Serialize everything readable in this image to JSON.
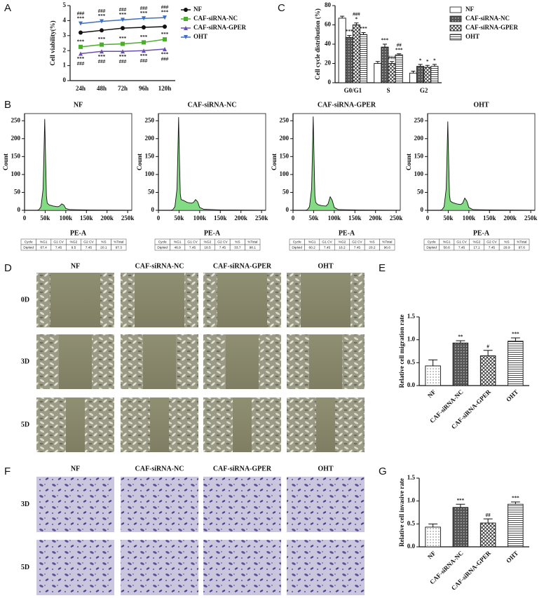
{
  "panel_labels": [
    "A",
    "B",
    "C",
    "D",
    "E",
    "F",
    "G"
  ],
  "micrographs": {
    "D": {
      "columns": [
        "NF",
        "CAF-siRNA-NC",
        "CAF-siRNA-GPER",
        "OHT"
      ],
      "rows": [
        "0D",
        "3D",
        "5D"
      ]
    },
    "F": {
      "columns": [
        "NF",
        "CAF-siRNA-NC",
        "CAF-siRNA-GPER",
        "OHT"
      ],
      "rows": [
        "3D",
        "5D"
      ]
    }
  },
  "chart_data": [
    {
      "type": "line",
      "y_label": "Cell viability(%)",
      "categories": [
        "24h",
        "48h",
        "72h",
        "96h",
        "120h"
      ],
      "ylim": [
        0,
        5
      ],
      "yticks": [
        0,
        1,
        2,
        3,
        4,
        5
      ],
      "series": [
        {
          "name": "NF",
          "color": "#111111",
          "marker": "circle",
          "values": [
            3.2,
            3.35,
            3.5,
            3.55,
            3.6
          ],
          "significance_position": "above",
          "significance": [
            [],
            [],
            [],
            [],
            []
          ]
        },
        {
          "name": "CAF-siRNA-NC",
          "color": "#4caf2c",
          "marker": "square",
          "values": [
            2.25,
            2.4,
            2.45,
            2.55,
            2.75
          ],
          "significance_position": "above",
          "significance": [
            [
              "***"
            ],
            [
              "***"
            ],
            [
              "***"
            ],
            [
              "***"
            ],
            [
              "***"
            ]
          ]
        },
        {
          "name": "CAF-siRNA-GPER",
          "color": "#6a4fb0",
          "marker": "triangle",
          "values": [
            1.8,
            1.95,
            1.95,
            2.0,
            2.1
          ],
          "significance_position": "below",
          "significance": [
            [
              "***",
              "###"
            ],
            [
              "***",
              "###"
            ],
            [
              "***",
              "###"
            ],
            [
              "***",
              "###"
            ],
            [
              "***",
              "###"
            ]
          ]
        },
        {
          "name": "OHT",
          "color": "#3d6fc4",
          "marker": "triangle-down",
          "values": [
            3.8,
            3.95,
            4.05,
            4.15,
            4.2
          ],
          "significance_position": "above",
          "significance": [
            [
              "***",
              "###"
            ],
            [
              "***",
              "###"
            ],
            [
              "***",
              "###"
            ],
            [
              "***",
              "###"
            ],
            [
              "***",
              "###"
            ]
          ]
        }
      ]
    },
    {
      "type": "bar",
      "y_label": "Cell cycle distribution (%)",
      "categories": [
        "G0/G1",
        "S",
        "G2"
      ],
      "ylim": [
        0,
        80
      ],
      "yticks": [
        0,
        20,
        40,
        60,
        80
      ],
      "series": [
        {
          "name": "NF",
          "pattern": "plain",
          "values": [
            67,
            20,
            10
          ],
          "errors": [
            2,
            2,
            2
          ],
          "significance": [
            [],
            [],
            []
          ]
        },
        {
          "name": "CAF-siRNA-NC",
          "pattern": "grid",
          "values": [
            47,
            37,
            17
          ],
          "errors": [
            2,
            3,
            2
          ],
          "significance": [
            [
              "***"
            ],
            [
              "***"
            ],
            [
              "*"
            ]
          ]
        },
        {
          "name": "CAF-siRNA-GPER",
          "pattern": "cross",
          "values": [
            60,
            20,
            16
          ],
          "errors": [
            2,
            2,
            2
          ],
          "significance": [
            [
              "*",
              "###"
            ],
            [
              "###"
            ],
            [
              "*"
            ]
          ]
        },
        {
          "name": "OHT",
          "pattern": "hstripes",
          "values": [
            50,
            29,
            17
          ],
          "errors": [
            2,
            1,
            2
          ],
          "significance": [
            [
              "***"
            ],
            [
              "***",
              "##"
            ],
            [
              "*"
            ]
          ]
        }
      ]
    },
    {
      "type": "area",
      "title": "NF",
      "x_label": "PE-A",
      "y_label": "Count",
      "x": [
        30000,
        35000,
        40000,
        45000,
        47000,
        49000,
        51000,
        53000,
        55000,
        60000,
        70000,
        80000,
        85000,
        90000,
        95000,
        100000,
        110000,
        150000,
        250000
      ],
      "values": [
        0,
        2,
        10,
        60,
        160,
        255,
        150,
        40,
        20,
        15,
        12,
        10,
        12,
        18,
        15,
        5,
        2,
        1,
        0
      ],
      "xlim": [
        0,
        260000
      ],
      "xticks": [
        0,
        {
          "value": 50000,
          "label": "50k"
        },
        {
          "value": 100000,
          "label": "100k"
        },
        {
          "value": 150000,
          "label": "150k"
        },
        {
          "value": 200000,
          "label": "200k"
        },
        {
          "value": 250000,
          "label": "250k"
        }
      ],
      "ylim": [
        0,
        270
      ],
      "yticks": [
        0,
        50,
        100,
        150,
        200,
        250
      ],
      "table": {
        "header": [
          "Cycle",
          "%G1",
          "G1 CV",
          "%G2",
          "G2 CV",
          "%S",
          "%Total"
        ],
        "row": [
          "Diploid",
          "67.4",
          "7.45",
          "9.5",
          "7.45",
          "20.1",
          "97.3"
        ]
      }
    },
    {
      "type": "area",
      "title": "CAF-siRNA-NC",
      "x_label": "PE-A",
      "y_label": "Count",
      "x": [
        30000,
        35000,
        40000,
        45000,
        47000,
        49000,
        51000,
        53000,
        55000,
        60000,
        70000,
        80000,
        85000,
        90000,
        95000,
        100000,
        110000,
        150000,
        250000
      ],
      "values": [
        0,
        2,
        10,
        60,
        160,
        260,
        140,
        45,
        30,
        28,
        22,
        20,
        22,
        30,
        24,
        8,
        3,
        1,
        0
      ],
      "xlim": [
        0,
        260000
      ],
      "xticks": [
        0,
        {
          "value": 50000,
          "label": "50k"
        },
        {
          "value": 100000,
          "label": "100k"
        },
        {
          "value": 150000,
          "label": "150k"
        },
        {
          "value": 200000,
          "label": "200k"
        },
        {
          "value": 250000,
          "label": "250k"
        }
      ],
      "ylim": [
        0,
        270
      ],
      "yticks": [
        0,
        50,
        100,
        150,
        200,
        250
      ],
      "table": {
        "header": [
          "Cycle",
          "%G1",
          "G1 CV",
          "%G2",
          "G2 CV",
          "%S",
          "%Total"
        ],
        "row": [
          "Diploid",
          "46.9",
          "7.45",
          "18.5",
          "7.45",
          "33.7",
          "98.1"
        ]
      }
    },
    {
      "type": "area",
      "title": "CAF-siRNA-GPER",
      "x_label": "PE-A",
      "y_label": "Count",
      "x": [
        30000,
        35000,
        40000,
        45000,
        47000,
        49000,
        51000,
        53000,
        55000,
        60000,
        70000,
        80000,
        85000,
        90000,
        95000,
        100000,
        110000,
        150000,
        250000
      ],
      "values": [
        0,
        2,
        10,
        60,
        160,
        262,
        145,
        40,
        22,
        16,
        13,
        12,
        18,
        38,
        28,
        8,
        2,
        1,
        0
      ],
      "xlim": [
        0,
        260000
      ],
      "xticks": [
        0,
        {
          "value": 50000,
          "label": "50k"
        },
        {
          "value": 100000,
          "label": "100k"
        },
        {
          "value": 150000,
          "label": "150k"
        },
        {
          "value": 200000,
          "label": "200k"
        },
        {
          "value": 250000,
          "label": "250k"
        }
      ],
      "ylim": [
        0,
        270
      ],
      "yticks": [
        0,
        50,
        100,
        150,
        200,
        250
      ],
      "table": {
        "header": [
          "Cycle",
          "%G1",
          "G1 CV",
          "%G2",
          "G2 CV",
          "%S",
          "%Total"
        ],
        "row": [
          "Diploid",
          "60.2",
          "7.45",
          "16.2",
          "7.45",
          "20.2",
          "96.6"
        ]
      }
    },
    {
      "type": "area",
      "title": "OHT",
      "x_label": "PE-A",
      "y_label": "Count",
      "x": [
        30000,
        35000,
        40000,
        45000,
        47000,
        49000,
        51000,
        53000,
        55000,
        60000,
        70000,
        80000,
        85000,
        90000,
        95000,
        100000,
        110000,
        150000,
        250000
      ],
      "values": [
        0,
        2,
        10,
        60,
        155,
        248,
        140,
        42,
        26,
        22,
        18,
        16,
        20,
        34,
        26,
        8,
        2,
        1,
        0
      ],
      "xlim": [
        0,
        260000
      ],
      "xticks": [
        0,
        {
          "value": 50000,
          "label": "50k"
        },
        {
          "value": 100000,
          "label": "100k"
        },
        {
          "value": 150000,
          "label": "150k"
        },
        {
          "value": 200000,
          "label": "200k"
        },
        {
          "value": 250000,
          "label": "250k"
        }
      ],
      "ylim": [
        0,
        270
      ],
      "yticks": [
        0,
        50,
        100,
        150,
        200,
        250
      ],
      "table": {
        "header": [
          "Cycle",
          "%G1",
          "G1 CV",
          "%G2",
          "G2 CV",
          "%S",
          "%Total"
        ],
        "row": [
          "Diploid",
          "50.6",
          "7.45",
          "17.1",
          "7.45",
          "29.9",
          "97.6"
        ]
      }
    },
    {
      "type": "bar",
      "y_label": "Relative cell migration rate",
      "categories": [
        "NF",
        "CAF-siRNA-NC",
        "CAF-siRNA-GPER",
        "OHT"
      ],
      "values": [
        0.43,
        0.93,
        0.65,
        0.97
      ],
      "errors": [
        0.13,
        0.05,
        0.12,
        0.07
      ],
      "patterns": [
        "dots",
        "grid",
        "cross",
        "hstripes"
      ],
      "significance": [
        [],
        [
          "**"
        ],
        [
          "#"
        ],
        [
          "***"
        ]
      ],
      "ylim": [
        0,
        1.5
      ],
      "yticks": [
        {
          "value": 0,
          "label": "0.0"
        },
        0.5,
        {
          "value": 1,
          "label": "1.0"
        },
        1.5
      ]
    },
    {
      "type": "bar",
      "y_label": "Relative cell invasive rate",
      "categories": [
        "NF",
        "CAF-siRNA-NC",
        "CAF-siRNA-GPER",
        "OHT"
      ],
      "values": [
        0.43,
        0.86,
        0.52,
        0.93
      ],
      "errors": [
        0.07,
        0.07,
        0.09,
        0.05
      ],
      "patterns": [
        "dots",
        "grid",
        "cross",
        "hstripes"
      ],
      "significance": [
        [],
        [
          "***"
        ],
        [
          "##"
        ],
        [
          "***"
        ]
      ],
      "ylim": [
        0,
        1.5
      ],
      "yticks": [
        {
          "value": 0,
          "label": "0.0"
        },
        0.5,
        {
          "value": 1,
          "label": "1.0"
        },
        1.5
      ]
    }
  ]
}
